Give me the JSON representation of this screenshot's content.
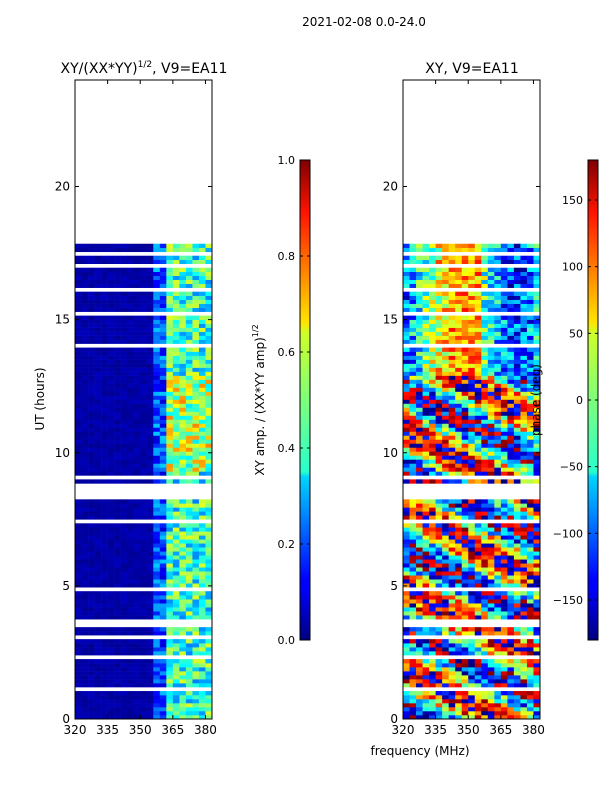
{
  "figure_title": "2021-02-08 0.0-24.0",
  "shared_xlabel": "frequency (MHz)",
  "chart_data": [
    {
      "type": "heatmap",
      "title_main": "XY/(XX*YY)",
      "title_sup": "1/2",
      "title_tail": ", V9=EA11",
      "xlabel": "",
      "ylabel": "UT (hours)",
      "xlim": [
        320,
        383
      ],
      "ylim": [
        0,
        24
      ],
      "xticks": [
        320,
        335,
        350,
        365,
        380
      ],
      "yticks": [
        0,
        5,
        10,
        15,
        20
      ],
      "data_extent_hours": [
        0.0,
        18.0
      ],
      "colorbar": {
        "label_main": "XY amp. / (XX*YY amp)",
        "label_sup": "1/2",
        "range": [
          0.0,
          1.0
        ],
        "ticks": [
          "0.0",
          "0.2",
          "0.4",
          "0.6",
          "0.8",
          "1.0"
        ]
      }
    },
    {
      "type": "heatmap",
      "title_main": "XY, V9=EA11",
      "xlabel": "",
      "ylabel": "",
      "xlim": [
        320,
        383
      ],
      "ylim": [
        0,
        24
      ],
      "xticks": [
        320,
        335,
        350,
        365,
        380
      ],
      "yticks": [
        0,
        5,
        10,
        15,
        20
      ],
      "data_extent_hours": [
        0.0,
        18.0
      ],
      "colorbar": {
        "label_main": "phase (deg)",
        "range": [
          -180,
          180
        ],
        "ticks": [
          "-150",
          "-100",
          "-50",
          "0",
          "50",
          "100",
          "150"
        ]
      }
    }
  ]
}
